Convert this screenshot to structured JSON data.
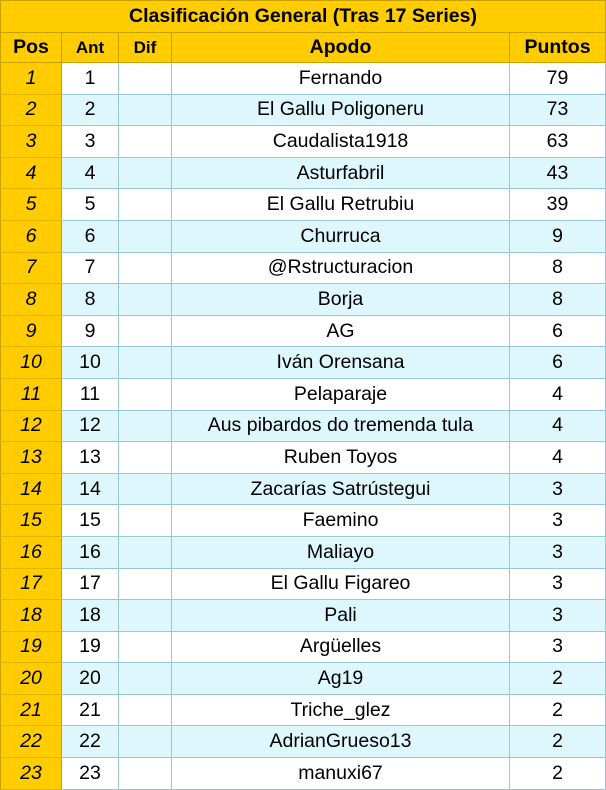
{
  "title": "Clasificación General (Tras 17 Series)",
  "columns": {
    "pos": "Pos",
    "ant": "Ant",
    "dif": "Dif",
    "apodo": "Apodo",
    "puntos": "Puntos"
  },
  "rows": [
    {
      "pos": "1",
      "ant": "1",
      "dif": "",
      "apodo": "Fernando",
      "puntos": "79"
    },
    {
      "pos": "2",
      "ant": "2",
      "dif": "",
      "apodo": "El Gallu Poligoneru",
      "puntos": "73"
    },
    {
      "pos": "3",
      "ant": "3",
      "dif": "",
      "apodo": "Caudalista1918",
      "puntos": "63"
    },
    {
      "pos": "4",
      "ant": "4",
      "dif": "",
      "apodo": "Asturfabril",
      "puntos": "43"
    },
    {
      "pos": "5",
      "ant": "5",
      "dif": "",
      "apodo": "El Gallu Retrubiu",
      "puntos": "39"
    },
    {
      "pos": "6",
      "ant": "6",
      "dif": "",
      "apodo": "Churruca",
      "puntos": "9"
    },
    {
      "pos": "7",
      "ant": "7",
      "dif": "",
      "apodo": "@Rstructuracion",
      "puntos": "8"
    },
    {
      "pos": "8",
      "ant": "8",
      "dif": "",
      "apodo": "Borja",
      "puntos": "8"
    },
    {
      "pos": "9",
      "ant": "9",
      "dif": "",
      "apodo": "AG",
      "puntos": "6"
    },
    {
      "pos": "10",
      "ant": "10",
      "dif": "",
      "apodo": "Iván Orensana",
      "puntos": "6"
    },
    {
      "pos": "11",
      "ant": "11",
      "dif": "",
      "apodo": "Pelaparaje",
      "puntos": "4"
    },
    {
      "pos": "12",
      "ant": "12",
      "dif": "",
      "apodo": "Aus pibardos do tremenda tula",
      "puntos": "4"
    },
    {
      "pos": "13",
      "ant": "13",
      "dif": "",
      "apodo": "Ruben Toyos",
      "puntos": "4"
    },
    {
      "pos": "14",
      "ant": "14",
      "dif": "",
      "apodo": "Zacarías Satrústegui",
      "puntos": "3"
    },
    {
      "pos": "15",
      "ant": "15",
      "dif": "",
      "apodo": "Faemino",
      "puntos": "3"
    },
    {
      "pos": "16",
      "ant": "16",
      "dif": "",
      "apodo": "Maliayo",
      "puntos": "3"
    },
    {
      "pos": "17",
      "ant": "17",
      "dif": "",
      "apodo": "El Gallu Figareo",
      "puntos": "3"
    },
    {
      "pos": "18",
      "ant": "18",
      "dif": "",
      "apodo": "Pali",
      "puntos": "3"
    },
    {
      "pos": "19",
      "ant": "19",
      "dif": "",
      "apodo": "Argüelles",
      "puntos": "3"
    },
    {
      "pos": "20",
      "ant": "20",
      "dif": "",
      "apodo": "Ag19",
      "puntos": "2"
    },
    {
      "pos": "21",
      "ant": "21",
      "dif": "",
      "apodo": "Triche_glez",
      "puntos": "2"
    },
    {
      "pos": "22",
      "ant": "22",
      "dif": "",
      "apodo": "AdrianGrueso13",
      "puntos": "2"
    },
    {
      "pos": "23",
      "ant": "23",
      "dif": "",
      "apodo": "manuxi67",
      "puntos": "2"
    }
  ]
}
